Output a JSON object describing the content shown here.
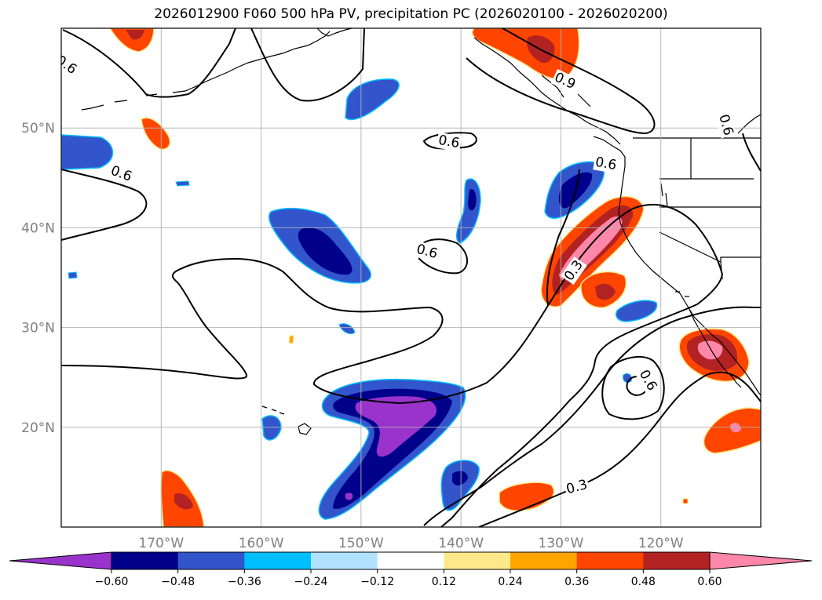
{
  "title": "2026012900 F060 500 hPa PV, precipitation PC (2026020100 - 2026020200)",
  "chart_data": {
    "type": "heatmap",
    "map_extent": {
      "lon": [
        -180,
        -110
      ],
      "lat": [
        10,
        60
      ]
    },
    "gridlines": true,
    "lon_ticks": [
      {
        "lon": -170,
        "label": "170°W"
      },
      {
        "lon": -160,
        "label": "160°W"
      },
      {
        "lon": -150,
        "label": "150°W"
      },
      {
        "lon": -140,
        "label": "140°W"
      },
      {
        "lon": -130,
        "label": "130°W"
      },
      {
        "lon": -120,
        "label": "120°W"
      }
    ],
    "lat_ticks": [
      {
        "lat": 50,
        "label": "50°N"
      },
      {
        "lat": 40,
        "label": "40°N"
      },
      {
        "lat": 30,
        "label": "30°N"
      },
      {
        "lat": 20,
        "label": "20°N"
      }
    ],
    "colorbar": {
      "placement": "bottom",
      "extend": "both",
      "ticks": [
        "−0.60",
        "−0.48",
        "−0.36",
        "−0.24",
        "−0.12",
        "0.12",
        "0.24",
        "0.36",
        "0.48",
        "0.60"
      ],
      "colors": [
        "#9933cc",
        "#00008b",
        "#3355cc",
        "#00bfff",
        "#b0e2ff",
        "#ffffff",
        "#ffe88a",
        "#ffa500",
        "#ff4500",
        "#b22222",
        "#ff88aa"
      ]
    },
    "contour_labels": [
      {
        "text": "0.6",
        "lon": -179.5,
        "lat": 56.3,
        "angle": 35
      },
      {
        "text": "0.6",
        "lon": -174.0,
        "lat": 45.4,
        "angle": 20
      },
      {
        "text": "0.6",
        "lon": -141.2,
        "lat": 48.6,
        "angle": 10
      },
      {
        "text": "0.6",
        "lon": -143.4,
        "lat": 37.6,
        "angle": 15
      },
      {
        "text": "0.3",
        "lon": -128.7,
        "lat": 35.7,
        "angle": -55
      },
      {
        "text": "0.6",
        "lon": -121.3,
        "lat": 24.7,
        "angle": 60
      },
      {
        "text": "0.3",
        "lon": -128.4,
        "lat": 14.0,
        "angle": -15
      },
      {
        "text": "0.9",
        "lon": -129.6,
        "lat": 54.7,
        "angle": 25
      },
      {
        "text": "0.6",
        "lon": -125.5,
        "lat": 46.4,
        "angle": 10
      },
      {
        "text": "0.6",
        "lon": -113.5,
        "lat": 50.3,
        "angle": 75
      }
    ],
    "precip_anomaly_regions": [
      {
        "name": "Central Pacific negative",
        "lon": -156.5,
        "lat": 37.3,
        "category": "-0.48 to -0.36"
      },
      {
        "name": "Subtropical negative",
        "lon": -148.0,
        "lat": 20.5,
        "category": "< -0.60"
      },
      {
        "name": "Gulf of Alaska negative",
        "lon": -147.5,
        "lat": 53.5,
        "category": "-0.48 to -0.36"
      },
      {
        "name": "Northern California positive",
        "lon": -127.7,
        "lat": 37.0,
        "category": "> 0.60"
      },
      {
        "name": "British Columbia coast positive",
        "lon": -133.0,
        "lat": 57.8,
        "category": "0.48 to 0.60"
      },
      {
        "name": "Baja California positive",
        "lon": -115.5,
        "lat": 27.5,
        "category": "> 0.60"
      },
      {
        "name": "Hawaii south positive",
        "lon": -169.0,
        "lat": 13.0,
        "category": "0.48 to 0.60"
      },
      {
        "name": "Eastern subtropical positive",
        "lon": -130.5,
        "lat": 13.0,
        "category": "0.36 to 0.48"
      }
    ]
  }
}
